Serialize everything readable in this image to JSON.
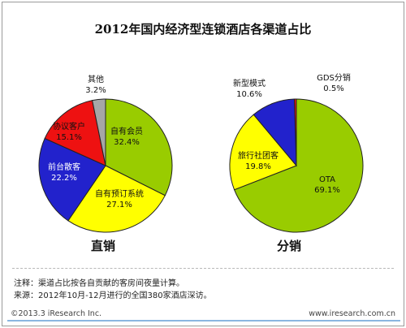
{
  "title": "2012年国内经济型连锁酒店各渠道占比",
  "chart_data": [
    {
      "type": "pie",
      "title": "直销",
      "unit": "%",
      "slices": [
        {
          "label": "自有会员",
          "value": 32.4,
          "value_label": "32.4%",
          "color": "#99cc00"
        },
        {
          "label": "自有预订系统",
          "value": 27.1,
          "value_label": "27.1%",
          "color": "#ffff00"
        },
        {
          "label": "前台散客",
          "value": 22.2,
          "value_label": "22.2%",
          "color": "#2222cc"
        },
        {
          "label": "协议客户",
          "value": 15.1,
          "value_label": "15.1%",
          "color": "#ee1111"
        },
        {
          "label": "其他",
          "value": 3.2,
          "value_label": "3.2%",
          "color": "#a6a6a6"
        }
      ]
    },
    {
      "type": "pie",
      "title": "分销",
      "unit": "%",
      "slices": [
        {
          "label": "OTA",
          "value": 69.1,
          "value_label": "69.1%",
          "color": "#99cc00"
        },
        {
          "label": "旅行社团客",
          "value": 19.8,
          "value_label": "19.8%",
          "color": "#ffff00"
        },
        {
          "label": "新型模式",
          "value": 10.6,
          "value_label": "10.6%",
          "color": "#2222cc"
        },
        {
          "label": "GDS分销",
          "value": 0.5,
          "value_label": "0.5%",
          "color": "#ee1111"
        }
      ]
    }
  ],
  "notes": {
    "note1": "注释：渠道占比按各自贡献的客房间夜量计算。",
    "note2": "来源：2012年10月-12月进行的全国380家酒店深访。"
  },
  "footer": {
    "copyright": "©2013.3 iResearch Inc.",
    "website": "www.iresearch.com.cn"
  }
}
